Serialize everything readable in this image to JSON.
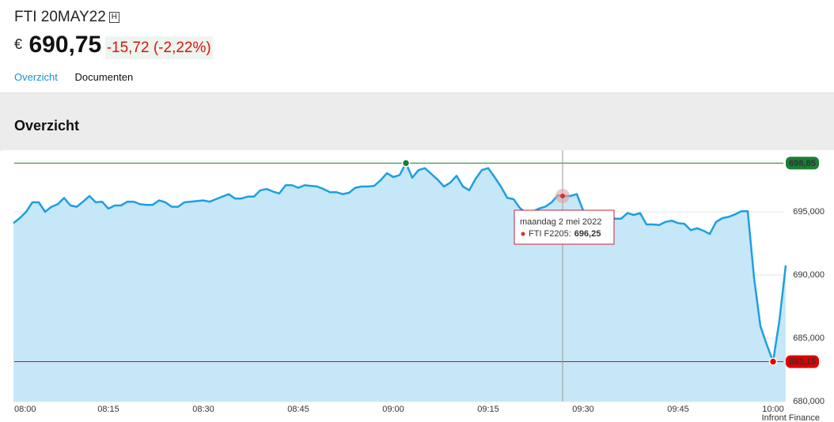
{
  "header": {
    "title": "FTI 20MAY22",
    "badge": "H",
    "currency": "€",
    "price": "690,75",
    "change": "-15,72",
    "change_pct": "(-2,22%)"
  },
  "tabs": [
    "Overzicht",
    "Documenten"
  ],
  "section_title": "Overzicht",
  "chart_data": {
    "type": "area",
    "x": [
      "08:00",
      "08:01",
      "08:02",
      "08:03",
      "08:04",
      "08:05",
      "08:06",
      "08:07",
      "08:08",
      "08:09",
      "08:10",
      "08:11",
      "08:12",
      "08:13",
      "08:14",
      "08:15",
      "08:16",
      "08:17",
      "08:18",
      "08:19",
      "08:20",
      "08:21",
      "08:22",
      "08:23",
      "08:24",
      "08:25",
      "08:26",
      "08:27",
      "08:28",
      "08:29",
      "08:30",
      "08:31",
      "08:32",
      "08:33",
      "08:34",
      "08:35",
      "08:36",
      "08:37",
      "08:38",
      "08:39",
      "08:40",
      "08:41",
      "08:42",
      "08:43",
      "08:44",
      "08:45",
      "08:46",
      "08:47",
      "08:48",
      "08:49",
      "08:50",
      "08:51",
      "08:52",
      "08:53",
      "08:54",
      "08:55",
      "08:56",
      "08:57",
      "08:58",
      "08:59",
      "09:00",
      "09:01",
      "09:02",
      "09:03",
      "09:04",
      "09:05",
      "09:06",
      "09:07",
      "09:08",
      "09:09",
      "09:10",
      "09:11",
      "09:12",
      "09:13",
      "09:14",
      "09:15",
      "09:16",
      "09:17",
      "09:18",
      "09:19",
      "09:20",
      "09:21",
      "09:22",
      "09:23",
      "09:24",
      "09:25",
      "09:26",
      "09:27",
      "09:28",
      "09:29",
      "09:30",
      "09:31",
      "09:32",
      "09:33",
      "09:34",
      "09:35",
      "09:36",
      "09:37",
      "09:38",
      "09:39",
      "09:40",
      "09:41",
      "09:42",
      "09:43",
      "09:44",
      "09:45",
      "09:46",
      "09:47",
      "09:48",
      "09:49",
      "09:50",
      "09:51",
      "09:52",
      "09:53",
      "09:54",
      "09:55",
      "09:56",
      "09:57",
      "09:58",
      "09:59",
      "10:00",
      "10:01",
      "10:02"
    ],
    "series": [
      {
        "name": "FTI F2205",
        "color": "#1e9fe0",
        "fill": "#c6e7f8",
        "values": [
          694.1,
          694.5,
          695.0,
          695.75,
          695.75,
          695.0,
          695.4,
          695.6,
          696.1,
          695.5,
          695.4,
          695.8,
          696.25,
          695.75,
          695.8,
          695.25,
          695.5,
          695.5,
          695.8,
          695.8,
          695.6,
          695.55,
          695.55,
          695.9,
          695.75,
          695.4,
          695.4,
          695.75,
          695.8,
          695.85,
          695.9,
          695.8,
          696.0,
          696.2,
          696.4,
          696.05,
          696.05,
          696.2,
          696.2,
          696.7,
          696.8,
          696.6,
          696.45,
          697.1,
          697.1,
          696.9,
          697.1,
          697.05,
          697.0,
          696.8,
          696.55,
          696.55,
          696.4,
          696.5,
          696.9,
          697.0,
          697.0,
          697.05,
          697.5,
          698.05,
          697.75,
          697.9,
          698.85,
          697.7,
          698.3,
          698.45,
          698.0,
          697.55,
          697.0,
          697.3,
          697.85,
          697.0,
          696.7,
          697.6,
          698.3,
          698.45,
          697.75,
          697.0,
          696.1,
          696.0,
          695.3,
          694.9,
          695.0,
          695.25,
          695.4,
          695.75,
          696.3,
          696.25,
          696.25,
          696.4,
          695.1,
          694.55,
          694.4,
          694.45,
          694.9,
          694.45,
          694.45,
          694.9,
          694.75,
          694.9,
          694.0,
          694.0,
          693.95,
          694.2,
          694.3,
          694.1,
          694.05,
          693.55,
          693.7,
          693.5,
          693.25,
          694.2,
          694.5,
          694.6,
          694.8,
          695.05,
          695.05,
          689.75,
          685.95,
          684.5,
          683.15,
          686.4,
          690.75
        ]
      }
    ],
    "ylim": [
      680,
      700
    ],
    "yticks": [
      {
        "value": 680,
        "label": "680,000"
      },
      {
        "value": 685,
        "label": "685,000"
      },
      {
        "value": 690,
        "label": "690,000"
      },
      {
        "value": 695,
        "label": "695,000"
      }
    ],
    "xticks": [
      "08:00",
      "08:15",
      "08:30",
      "08:45",
      "09:00",
      "09:15",
      "09:30",
      "09:45",
      "10:00"
    ],
    "grid": true,
    "reference_lines": [
      {
        "value": 698.85,
        "label": "698,85",
        "color": "#1a7f37"
      },
      {
        "value": 683.15,
        "label": "683,15",
        "color": "#e00000"
      }
    ],
    "tooltip": {
      "title": "maandag 2 mei 2022",
      "series_name": "FTI F2205:",
      "value_label": "696,25"
    },
    "credits": "Infront Finance"
  }
}
